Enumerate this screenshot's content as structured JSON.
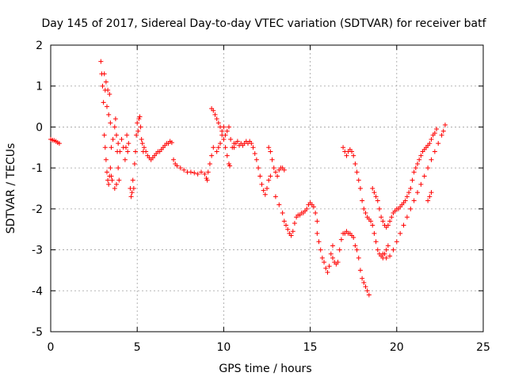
{
  "chart_data": {
    "type": "scatter",
    "title": "Day 145 of 2017, Sidereal Day-to-day VTEC variation (SDTVAR) for receiver batf",
    "xlabel": "GPS time / hours",
    "ylabel": "SDTVAR / TECUs",
    "xlim": [
      0,
      25
    ],
    "ylim": [
      -5,
      2
    ],
    "x_ticks": [
      "0",
      "5",
      "10",
      "15",
      "20",
      "25"
    ],
    "y_ticks": [
      "2",
      "1",
      "0",
      "-1",
      "-2",
      "-3",
      "-4",
      "-5"
    ],
    "grid": true,
    "marker": "plus",
    "color": "#ff0000",
    "series": [
      {
        "points": [
          [
            0.0,
            -0.3
          ],
          [
            0.1,
            -0.32
          ],
          [
            0.2,
            -0.33
          ],
          [
            0.3,
            -0.35
          ],
          [
            0.4,
            -0.38
          ],
          [
            0.5,
            -0.4
          ],
          [
            2.9,
            1.6
          ],
          [
            2.95,
            1.3
          ],
          [
            3.0,
            1.0
          ],
          [
            3.05,
            0.6
          ],
          [
            3.1,
            1.3
          ],
          [
            3.15,
            0.9
          ],
          [
            3.2,
            1.1
          ],
          [
            3.25,
            0.5
          ],
          [
            3.3,
            0.9
          ],
          [
            3.35,
            0.3
          ],
          [
            3.4,
            0.8
          ],
          [
            3.45,
            0.1
          ],
          [
            3.1,
            -0.2
          ],
          [
            3.15,
            -0.5
          ],
          [
            3.2,
            -0.8
          ],
          [
            3.25,
            -1.1
          ],
          [
            3.3,
            -1.3
          ],
          [
            3.35,
            -1.4
          ],
          [
            3.4,
            -1.2
          ],
          [
            3.45,
            -1.0
          ],
          [
            3.5,
            -1.2
          ],
          [
            3.55,
            -1.3
          ],
          [
            3.5,
            -0.5
          ],
          [
            3.6,
            -0.3
          ],
          [
            3.7,
            0.0
          ],
          [
            3.75,
            0.2
          ],
          [
            3.8,
            -0.2
          ],
          [
            3.85,
            -0.6
          ],
          [
            3.9,
            -1.0
          ],
          [
            3.95,
            -1.3
          ],
          [
            3.7,
            -1.5
          ],
          [
            3.8,
            -1.4
          ],
          [
            3.9,
            -0.4
          ],
          [
            4.0,
            -0.6
          ],
          [
            4.1,
            -0.3
          ],
          [
            4.2,
            -0.5
          ],
          [
            4.3,
            -0.8
          ],
          [
            4.35,
            -0.5
          ],
          [
            4.4,
            -0.2
          ],
          [
            4.45,
            -0.6
          ],
          [
            4.5,
            -0.4
          ],
          [
            4.6,
            -1.5
          ],
          [
            4.65,
            -1.7
          ],
          [
            4.7,
            -1.6
          ],
          [
            4.75,
            -1.3
          ],
          [
            4.8,
            -1.5
          ],
          [
            4.85,
            -0.9
          ],
          [
            4.9,
            -0.6
          ],
          [
            4.95,
            -0.2
          ],
          [
            5.0,
            0.1
          ],
          [
            5.05,
            -0.1
          ],
          [
            5.1,
            0.2
          ],
          [
            5.15,
            0.25
          ],
          [
            5.2,
            0.0
          ],
          [
            5.25,
            -0.3
          ],
          [
            5.3,
            -0.4
          ],
          [
            5.35,
            -0.6
          ],
          [
            5.4,
            -0.5
          ],
          [
            5.5,
            -0.6
          ],
          [
            5.6,
            -0.7
          ],
          [
            5.7,
            -0.75
          ],
          [
            5.8,
            -0.8
          ],
          [
            5.9,
            -0.75
          ],
          [
            6.0,
            -0.7
          ],
          [
            6.1,
            -0.65
          ],
          [
            6.2,
            -0.6
          ],
          [
            6.3,
            -0.6
          ],
          [
            6.4,
            -0.55
          ],
          [
            6.5,
            -0.5
          ],
          [
            6.6,
            -0.45
          ],
          [
            6.7,
            -0.4
          ],
          [
            6.8,
            -0.4
          ],
          [
            6.9,
            -0.35
          ],
          [
            7.0,
            -0.38
          ],
          [
            7.1,
            -0.8
          ],
          [
            7.2,
            -0.9
          ],
          [
            7.3,
            -0.95
          ],
          [
            7.5,
            -1.0
          ],
          [
            7.7,
            -1.05
          ],
          [
            7.9,
            -1.1
          ],
          [
            8.1,
            -1.1
          ],
          [
            8.3,
            -1.12
          ],
          [
            8.5,
            -1.15
          ],
          [
            8.7,
            -1.1
          ],
          [
            8.9,
            -1.15
          ],
          [
            9.0,
            -1.25
          ],
          [
            9.05,
            -1.3
          ],
          [
            9.1,
            -1.1
          ],
          [
            9.2,
            -0.9
          ],
          [
            9.3,
            -0.7
          ],
          [
            9.4,
            -0.5
          ],
          [
            9.3,
            0.45
          ],
          [
            9.4,
            0.4
          ],
          [
            9.5,
            0.3
          ],
          [
            9.6,
            0.2
          ],
          [
            9.7,
            0.1
          ],
          [
            9.8,
            0.0
          ],
          [
            9.9,
            -0.1
          ],
          [
            10.0,
            -0.3
          ],
          [
            10.1,
            -0.5
          ],
          [
            10.2,
            -0.7
          ],
          [
            10.3,
            -0.9
          ],
          [
            10.35,
            -0.95
          ],
          [
            9.6,
            -0.6
          ],
          [
            9.7,
            -0.5
          ],
          [
            9.8,
            -0.4
          ],
          [
            9.9,
            -0.2
          ],
          [
            10.0,
            0.0
          ],
          [
            10.1,
            -0.2
          ],
          [
            10.2,
            -0.1
          ],
          [
            10.3,
            0.0
          ],
          [
            10.4,
            -0.3
          ],
          [
            10.5,
            -0.5
          ],
          [
            10.6,
            -0.4
          ],
          [
            10.6,
            -0.5
          ],
          [
            10.7,
            -0.4
          ],
          [
            10.8,
            -0.35
          ],
          [
            10.9,
            -0.45
          ],
          [
            11.0,
            -0.4
          ],
          [
            11.1,
            -0.45
          ],
          [
            11.2,
            -0.4
          ],
          [
            11.3,
            -0.35
          ],
          [
            11.4,
            -0.4
          ],
          [
            11.5,
            -0.35
          ],
          [
            11.6,
            -0.4
          ],
          [
            11.7,
            -0.5
          ],
          [
            11.8,
            -0.65
          ],
          [
            11.9,
            -0.8
          ],
          [
            12.0,
            -1.0
          ],
          [
            12.1,
            -1.2
          ],
          [
            12.2,
            -1.4
          ],
          [
            12.3,
            -1.55
          ],
          [
            12.4,
            -1.65
          ],
          [
            12.5,
            -1.5
          ],
          [
            12.6,
            -1.3
          ],
          [
            12.7,
            -1.2
          ],
          [
            12.6,
            -0.5
          ],
          [
            12.7,
            -0.6
          ],
          [
            12.8,
            -0.8
          ],
          [
            12.9,
            -1.0
          ],
          [
            13.0,
            -1.1
          ],
          [
            13.1,
            -1.2
          ],
          [
            13.2,
            -1.05
          ],
          [
            13.3,
            -1.0
          ],
          [
            13.4,
            -1.0
          ],
          [
            13.5,
            -1.05
          ],
          [
            13.0,
            -1.7
          ],
          [
            13.2,
            -1.9
          ],
          [
            13.4,
            -2.1
          ],
          [
            13.5,
            -2.3
          ],
          [
            13.6,
            -2.4
          ],
          [
            13.7,
            -2.5
          ],
          [
            13.8,
            -2.6
          ],
          [
            13.9,
            -2.65
          ],
          [
            14.0,
            -2.55
          ],
          [
            14.1,
            -2.35
          ],
          [
            14.2,
            -2.2
          ],
          [
            14.3,
            -2.15
          ],
          [
            14.4,
            -2.15
          ],
          [
            14.5,
            -2.1
          ],
          [
            14.6,
            -2.1
          ],
          [
            14.7,
            -2.05
          ],
          [
            14.8,
            -2.0
          ],
          [
            14.9,
            -1.9
          ],
          [
            15.0,
            -1.85
          ],
          [
            15.1,
            -1.9
          ],
          [
            15.2,
            -1.95
          ],
          [
            15.3,
            -2.1
          ],
          [
            15.4,
            -2.3
          ],
          [
            15.4,
            -2.6
          ],
          [
            15.5,
            -2.8
          ],
          [
            15.6,
            -3.0
          ],
          [
            15.7,
            -3.2
          ],
          [
            15.8,
            -3.3
          ],
          [
            15.9,
            -3.45
          ],
          [
            16.0,
            -3.55
          ],
          [
            16.1,
            -3.4
          ],
          [
            16.2,
            -3.1
          ],
          [
            16.3,
            -2.9
          ],
          [
            16.3,
            -3.2
          ],
          [
            16.4,
            -3.3
          ],
          [
            16.5,
            -3.35
          ],
          [
            16.6,
            -3.3
          ],
          [
            16.7,
            -3.0
          ],
          [
            16.8,
            -2.75
          ],
          [
            16.9,
            -2.6
          ],
          [
            17.0,
            -2.6
          ],
          [
            17.1,
            -2.55
          ],
          [
            17.2,
            -2.6
          ],
          [
            17.3,
            -2.6
          ],
          [
            17.4,
            -2.65
          ],
          [
            17.5,
            -2.7
          ],
          [
            17.6,
            -2.9
          ],
          [
            17.7,
            -3.0
          ],
          [
            17.8,
            -3.2
          ],
          [
            17.9,
            -3.5
          ],
          [
            18.0,
            -3.7
          ],
          [
            18.1,
            -3.8
          ],
          [
            18.2,
            -3.9
          ],
          [
            18.3,
            -4.0
          ],
          [
            18.4,
            -4.1
          ],
          [
            16.9,
            -0.5
          ],
          [
            17.0,
            -0.6
          ],
          [
            17.1,
            -0.7
          ],
          [
            17.2,
            -0.6
          ],
          [
            17.3,
            -0.55
          ],
          [
            17.4,
            -0.6
          ],
          [
            17.5,
            -0.7
          ],
          [
            17.6,
            -0.9
          ],
          [
            17.7,
            -1.1
          ],
          [
            17.8,
            -1.3
          ],
          [
            17.9,
            -1.5
          ],
          [
            18.0,
            -1.8
          ],
          [
            18.1,
            -2.0
          ],
          [
            18.2,
            -2.1
          ],
          [
            18.3,
            -2.2
          ],
          [
            18.4,
            -2.25
          ],
          [
            18.5,
            -2.3
          ],
          [
            18.6,
            -2.4
          ],
          [
            18.7,
            -2.6
          ],
          [
            18.8,
            -2.8
          ],
          [
            18.9,
            -3.0
          ],
          [
            19.0,
            -3.1
          ],
          [
            19.1,
            -3.15
          ],
          [
            19.2,
            -3.2
          ],
          [
            19.3,
            -3.1
          ],
          [
            19.4,
            -3.0
          ],
          [
            19.5,
            -2.9
          ],
          [
            18.6,
            -1.5
          ],
          [
            18.7,
            -1.6
          ],
          [
            18.8,
            -1.7
          ],
          [
            18.9,
            -1.8
          ],
          [
            19.0,
            -2.0
          ],
          [
            19.1,
            -2.2
          ],
          [
            19.2,
            -2.3
          ],
          [
            19.3,
            -2.4
          ],
          [
            19.4,
            -2.45
          ],
          [
            19.5,
            -2.4
          ],
          [
            19.6,
            -2.3
          ],
          [
            19.7,
            -2.2
          ],
          [
            19.8,
            -2.1
          ],
          [
            19.9,
            -2.05
          ],
          [
            20.0,
            -2.0
          ],
          [
            20.1,
            -2.0
          ],
          [
            20.2,
            -1.95
          ],
          [
            20.3,
            -1.9
          ],
          [
            20.4,
            -1.85
          ],
          [
            20.5,
            -1.8
          ],
          [
            20.6,
            -1.7
          ],
          [
            20.7,
            -1.6
          ],
          [
            20.8,
            -1.5
          ],
          [
            20.9,
            -1.3
          ],
          [
            21.0,
            -1.1
          ],
          [
            21.1,
            -1.0
          ],
          [
            21.2,
            -0.9
          ],
          [
            21.3,
            -0.8
          ],
          [
            21.4,
            -0.7
          ],
          [
            21.5,
            -0.6
          ],
          [
            21.6,
            -0.55
          ],
          [
            21.7,
            -0.5
          ],
          [
            21.8,
            -0.45
          ],
          [
            21.9,
            -0.4
          ],
          [
            22.0,
            -0.3
          ],
          [
            22.1,
            -0.2
          ],
          [
            22.2,
            -0.15
          ],
          [
            22.3,
            -0.05
          ],
          [
            19.2,
            -3.1
          ],
          [
            19.4,
            -3.2
          ],
          [
            19.6,
            -3.15
          ],
          [
            19.8,
            -3.0
          ],
          [
            20.0,
            -2.8
          ],
          [
            20.2,
            -2.6
          ],
          [
            20.4,
            -2.4
          ],
          [
            20.6,
            -2.2
          ],
          [
            20.8,
            -2.0
          ],
          [
            21.0,
            -1.8
          ],
          [
            21.2,
            -1.6
          ],
          [
            21.4,
            -1.4
          ],
          [
            21.6,
            -1.2
          ],
          [
            21.8,
            -1.0
          ],
          [
            22.0,
            -0.8
          ],
          [
            22.2,
            -0.6
          ],
          [
            22.4,
            -0.4
          ],
          [
            22.6,
            -0.2
          ],
          [
            22.7,
            -0.1
          ],
          [
            22.8,
            0.05
          ],
          [
            21.8,
            -1.8
          ],
          [
            21.9,
            -1.7
          ],
          [
            22.0,
            -1.6
          ]
        ]
      }
    ]
  }
}
